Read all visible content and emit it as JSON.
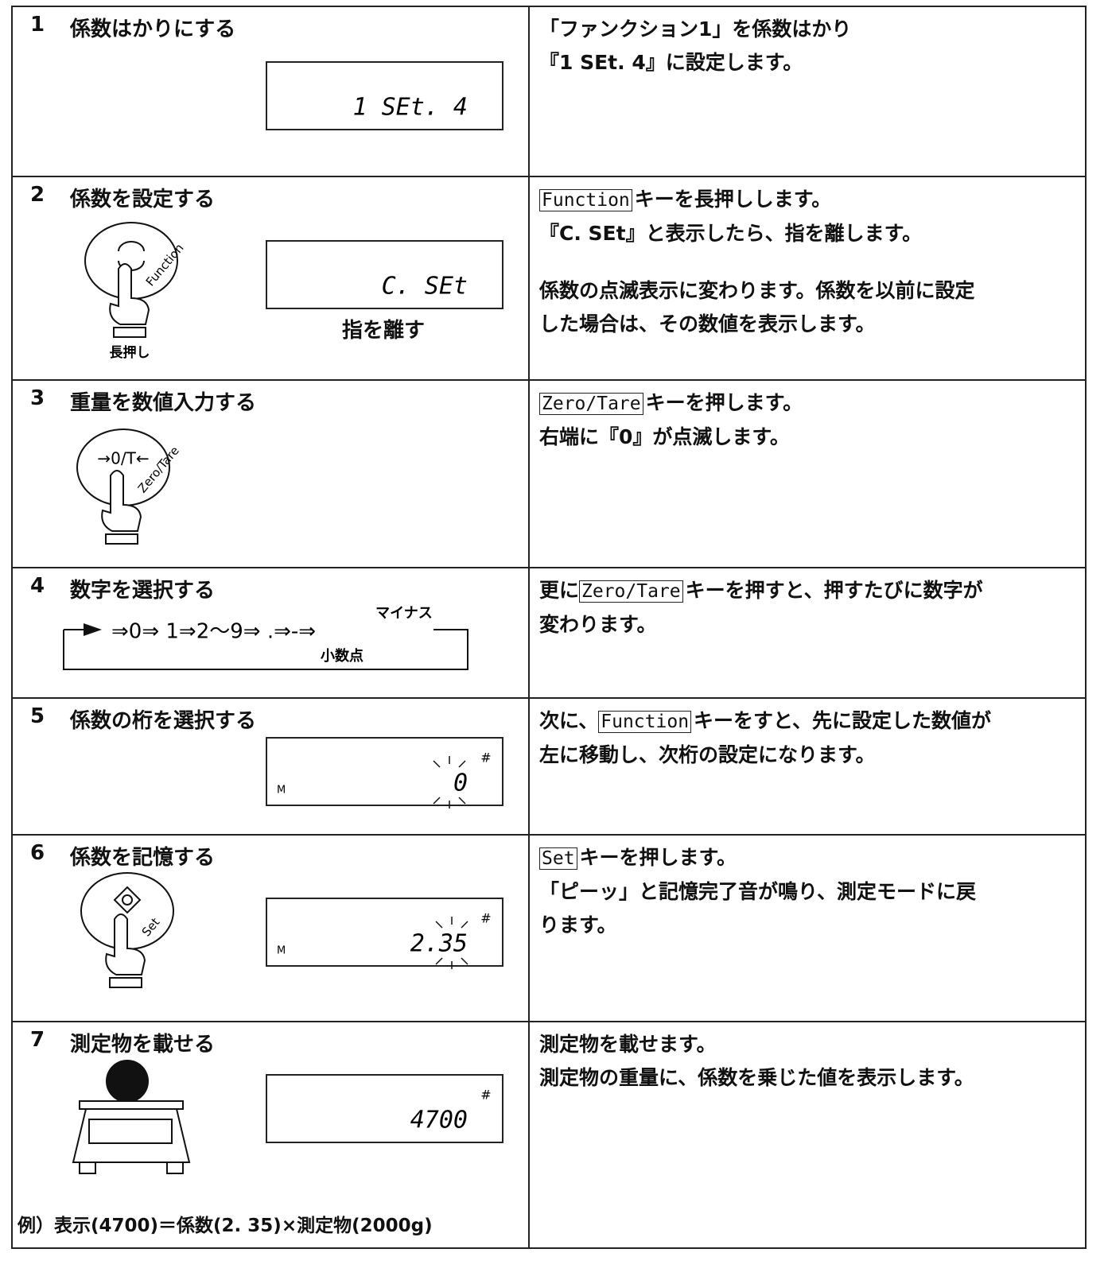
{
  "steps": [
    {
      "number": "1",
      "title": "係数はかりにする",
      "display": {
        "text": "1 SEt. 4"
      },
      "paragraphs": [
        [
          [
            "「ファンクション1」を係数はかり"
          ],
          [
            "『1 SEt. 4』に設定します。"
          ]
        ]
      ]
    },
    {
      "number": "2",
      "title": "係数を設定する",
      "display": {
        "text": "C. SEt"
      },
      "display_note": "指を離す",
      "button": {
        "label": "Function",
        "press": "長押し"
      },
      "paragraphs": [
        [
          [
            {
              "key": "Function"
            },
            "キーを長押しします。"
          ],
          [
            "『C. SEt』と表示したら、指を離します。"
          ]
        ],
        [
          [
            "係数の点滅表示に変わります。係数を以前に設定"
          ],
          [
            "した場合は、その数値を表示します。"
          ]
        ]
      ]
    },
    {
      "number": "3",
      "title": "重量を数値入力する",
      "button": {
        "symbol": "→0/T←",
        "label": "Zero/Tare"
      },
      "paragraphs": [
        [
          [
            {
              "key": "Zero/Tare"
            },
            "キーを押します。"
          ],
          [
            "右端に『0』が点滅します。"
          ]
        ]
      ]
    },
    {
      "number": "4",
      "title": "数字を選択する",
      "sequence": {
        "text": "⇒0⇒ 1⇒2～9⇒ .⇒-⇒",
        "minus": "マイナス",
        "decimal": "小数点"
      },
      "paragraphs": [
        [
          [
            "更に",
            {
              "key": "Zero/Tare"
            },
            "キーを押すと、押すたびに数字が"
          ],
          [
            "変わります。"
          ]
        ]
      ]
    },
    {
      "number": "5",
      "title": "係数の桁を選択する",
      "display": {
        "indicator": "M",
        "text": "0",
        "mark": "#"
      },
      "paragraphs": [
        [
          [
            "次に、",
            {
              "key": "Function"
            },
            "キーをすと、先に設定した数値が"
          ],
          [
            "左に移動し、次桁の設定になります。"
          ]
        ]
      ]
    },
    {
      "number": "6",
      "title": "係数を記憶する",
      "display": {
        "indicator": "M",
        "text": "2.35",
        "mark": "#"
      },
      "button": {
        "label": "Set"
      },
      "paragraphs": [
        [
          [
            {
              "key": "Set"
            },
            "キーを押します。"
          ],
          [
            "「ピーッ」と記憶完了音が鳴り、測定モードに戻"
          ],
          [
            "ります。"
          ]
        ]
      ]
    },
    {
      "number": "7",
      "title": "測定物を載せる",
      "display": {
        "text": "4700",
        "mark": "#"
      },
      "example": "例）表示(4700)＝係数(2. 35)×測定物(2000g)",
      "paragraphs": [
        [
          [
            "測定物を載せます。"
          ],
          [
            "測定物の重量に、係数を乗じた値を表示します。"
          ]
        ]
      ]
    }
  ]
}
